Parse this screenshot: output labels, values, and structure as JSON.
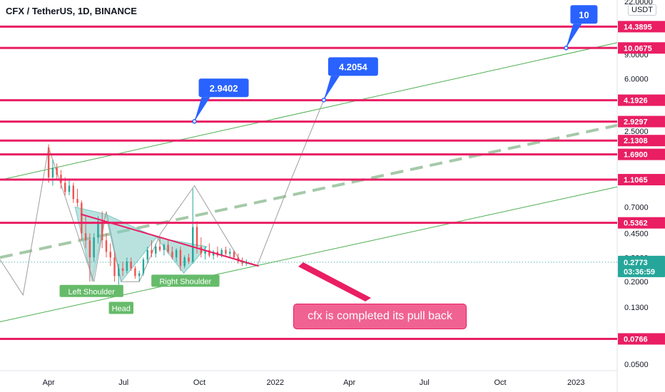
{
  "header": {
    "symbol_title": "CFX / TetherUS, 1D, BINANCE",
    "currency_button": "USDT"
  },
  "colors": {
    "hline": "#e91e63",
    "channel": "#4caf50",
    "dashed": "#a5c9a8",
    "price": "#9e9e9e",
    "callout": "#2962ff",
    "pattern_fill": "#80cbc4",
    "pattern_label": "#66bb6a",
    "candle_up": "#26a69a",
    "candle_down": "#ef5350",
    "current_price_bg": "#26a69a"
  },
  "chart_data": {
    "type": "candlestick",
    "y_scale": "log",
    "ylim": [
      0.045,
      22.5
    ],
    "x_range": [
      "2021-02-01",
      "2023-02-20"
    ],
    "x_ticks": [
      {
        "label": "Apr",
        "date": "2021-04-01"
      },
      {
        "label": "Jul",
        "date": "2021-07-01"
      },
      {
        "label": "Oct",
        "date": "2021-10-01"
      },
      {
        "label": "2022",
        "date": "2022-01-01"
      },
      {
        "label": "Apr",
        "date": "2022-04-01"
      },
      {
        "label": "Jul",
        "date": "2022-07-01"
      },
      {
        "label": "Oct",
        "date": "2022-10-01"
      },
      {
        "label": "2023",
        "date": "2023-01-01"
      }
    ],
    "y_ticks": [
      {
        "label": "22.0000",
        "value": 22.0
      },
      {
        "label": "9.0000",
        "value": 9.0
      },
      {
        "label": "6.0000",
        "value": 6.0
      },
      {
        "label": "2.5000",
        "value": 2.5
      },
      {
        "label": "0.7000",
        "value": 0.7
      },
      {
        "label": "0.4500",
        "value": 0.45
      },
      {
        "label": "0.3000",
        "value": 0.3
      },
      {
        "label": "0.2000",
        "value": 0.2
      },
      {
        "label": "0.1300",
        "value": 0.13
      },
      {
        "label": "0.0500",
        "value": 0.05
      }
    ],
    "horizontal_levels": [
      {
        "label": "14.3895",
        "value": 14.3895
      },
      {
        "label": "10.0675",
        "value": 10.0675
      },
      {
        "label": "4.1926",
        "value": 4.1926
      },
      {
        "label": "2.9297",
        "value": 2.9297
      },
      {
        "label": "2.1308",
        "value": 2.1308
      },
      {
        "label": "1.6900",
        "value": 1.69
      },
      {
        "label": "1.1065",
        "value": 1.1065
      },
      {
        "label": "0.5362",
        "value": 0.5362
      },
      {
        "label": "0.0766",
        "value": 0.0766
      }
    ],
    "current_price": {
      "label": "0.2773",
      "value": 0.2773,
      "countdown": "03:36:59"
    },
    "price_path": [
      {
        "date": "2021-02-01",
        "value": 0.29
      },
      {
        "date": "2021-03-01",
        "value": 0.16
      },
      {
        "date": "2021-04-01",
        "value": 1.9
      },
      {
        "date": "2021-05-10",
        "value": 0.38
      },
      {
        "date": "2021-05-26",
        "value": 0.2
      },
      {
        "date": "2021-06-10",
        "value": 0.65
      },
      {
        "date": "2021-06-28",
        "value": 0.2
      },
      {
        "date": "2021-07-20",
        "value": 0.2
      },
      {
        "date": "2021-08-15",
        "value": 0.45
      },
      {
        "date": "2021-09-25",
        "value": 1.0
      },
      {
        "date": "2021-11-20",
        "value": 0.28
      },
      {
        "date": "2021-12-10",
        "value": 0.26
      },
      {
        "date": "2022-01-20",
        "value": 1.1
      },
      {
        "date": "2022-03-01",
        "value": 4.2054
      }
    ],
    "candles": [
      {
        "date": "2021-04-01",
        "o": 1.9,
        "h": 2.0,
        "l": 1.05,
        "c": 1.15
      },
      {
        "date": "2021-04-06",
        "o": 1.15,
        "h": 1.55,
        "l": 1.0,
        "c": 1.35
      },
      {
        "date": "2021-04-11",
        "o": 1.35,
        "h": 1.45,
        "l": 1.1,
        "c": 1.2
      },
      {
        "date": "2021-04-16",
        "o": 1.2,
        "h": 1.3,
        "l": 0.95,
        "c": 1.05
      },
      {
        "date": "2021-04-21",
        "o": 1.05,
        "h": 1.15,
        "l": 0.85,
        "c": 0.9
      },
      {
        "date": "2021-04-26",
        "o": 0.9,
        "h": 1.1,
        "l": 0.85,
        "c": 1.0
      },
      {
        "date": "2021-05-01",
        "o": 1.0,
        "h": 1.05,
        "l": 0.75,
        "c": 0.8
      },
      {
        "date": "2021-05-06",
        "o": 0.8,
        "h": 0.95,
        "l": 0.7,
        "c": 0.75
      },
      {
        "date": "2021-05-11",
        "o": 0.75,
        "h": 0.78,
        "l": 0.4,
        "c": 0.45
      },
      {
        "date": "2021-05-16",
        "o": 0.45,
        "h": 0.6,
        "l": 0.35,
        "c": 0.4
      },
      {
        "date": "2021-05-21",
        "o": 0.4,
        "h": 0.45,
        "l": 0.2,
        "c": 0.3
      },
      {
        "date": "2021-05-26",
        "o": 0.3,
        "h": 0.45,
        "l": 0.28,
        "c": 0.42
      },
      {
        "date": "2021-05-31",
        "o": 0.42,
        "h": 0.6,
        "l": 0.38,
        "c": 0.55
      },
      {
        "date": "2021-06-05",
        "o": 0.55,
        "h": 0.65,
        "l": 0.35,
        "c": 0.4
      },
      {
        "date": "2021-06-10",
        "o": 0.4,
        "h": 0.45,
        "l": 0.3,
        "c": 0.33
      },
      {
        "date": "2021-06-15",
        "o": 0.33,
        "h": 0.38,
        "l": 0.26,
        "c": 0.3
      },
      {
        "date": "2021-06-20",
        "o": 0.3,
        "h": 0.33,
        "l": 0.2,
        "c": 0.22
      },
      {
        "date": "2021-06-25",
        "o": 0.22,
        "h": 0.27,
        "l": 0.19,
        "c": 0.25
      },
      {
        "date": "2021-06-30",
        "o": 0.25,
        "h": 0.28,
        "l": 0.22,
        "c": 0.24
      },
      {
        "date": "2021-07-05",
        "o": 0.24,
        "h": 0.3,
        "l": 0.23,
        "c": 0.28
      },
      {
        "date": "2021-07-10",
        "o": 0.28,
        "h": 0.3,
        "l": 0.24,
        "c": 0.25
      },
      {
        "date": "2021-07-15",
        "o": 0.25,
        "h": 0.26,
        "l": 0.21,
        "c": 0.22
      },
      {
        "date": "2021-07-20",
        "o": 0.22,
        "h": 0.24,
        "l": 0.2,
        "c": 0.23
      },
      {
        "date": "2021-07-25",
        "o": 0.23,
        "h": 0.3,
        "l": 0.22,
        "c": 0.29
      },
      {
        "date": "2021-07-30",
        "o": 0.29,
        "h": 0.36,
        "l": 0.27,
        "c": 0.34
      },
      {
        "date": "2021-08-04",
        "o": 0.34,
        "h": 0.4,
        "l": 0.3,
        "c": 0.32
      },
      {
        "date": "2021-08-09",
        "o": 0.32,
        "h": 0.38,
        "l": 0.3,
        "c": 0.36
      },
      {
        "date": "2021-08-14",
        "o": 0.36,
        "h": 0.42,
        "l": 0.33,
        "c": 0.34
      },
      {
        "date": "2021-08-19",
        "o": 0.34,
        "h": 0.38,
        "l": 0.31,
        "c": 0.37
      },
      {
        "date": "2021-08-24",
        "o": 0.37,
        "h": 0.4,
        "l": 0.32,
        "c": 0.33
      },
      {
        "date": "2021-08-29",
        "o": 0.33,
        "h": 0.36,
        "l": 0.29,
        "c": 0.3
      },
      {
        "date": "2021-09-03",
        "o": 0.3,
        "h": 0.35,
        "l": 0.28,
        "c": 0.34
      },
      {
        "date": "2021-09-08",
        "o": 0.34,
        "h": 0.36,
        "l": 0.24,
        "c": 0.26
      },
      {
        "date": "2021-09-13",
        "o": 0.26,
        "h": 0.31,
        "l": 0.25,
        "c": 0.3
      },
      {
        "date": "2021-09-18",
        "o": 0.3,
        "h": 0.32,
        "l": 0.27,
        "c": 0.28
      },
      {
        "date": "2021-09-23",
        "o": 0.28,
        "h": 0.95,
        "l": 0.27,
        "c": 0.5
      },
      {
        "date": "2021-09-28",
        "o": 0.5,
        "h": 0.55,
        "l": 0.32,
        "c": 0.36
      },
      {
        "date": "2021-10-03",
        "o": 0.36,
        "h": 0.42,
        "l": 0.3,
        "c": 0.32
      },
      {
        "date": "2021-10-08",
        "o": 0.32,
        "h": 0.36,
        "l": 0.29,
        "c": 0.34
      },
      {
        "date": "2021-10-13",
        "o": 0.34,
        "h": 0.38,
        "l": 0.3,
        "c": 0.31
      },
      {
        "date": "2021-10-18",
        "o": 0.31,
        "h": 0.34,
        "l": 0.29,
        "c": 0.33
      },
      {
        "date": "2021-10-23",
        "o": 0.33,
        "h": 0.36,
        "l": 0.3,
        "c": 0.31
      },
      {
        "date": "2021-10-28",
        "o": 0.31,
        "h": 0.35,
        "l": 0.3,
        "c": 0.34
      },
      {
        "date": "2021-11-02",
        "o": 0.34,
        "h": 0.36,
        "l": 0.31,
        "c": 0.32
      },
      {
        "date": "2021-11-07",
        "o": 0.32,
        "h": 0.35,
        "l": 0.3,
        "c": 0.33
      },
      {
        "date": "2021-11-12",
        "o": 0.33,
        "h": 0.34,
        "l": 0.29,
        "c": 0.3
      },
      {
        "date": "2021-11-17",
        "o": 0.3,
        "h": 0.32,
        "l": 0.27,
        "c": 0.28
      },
      {
        "date": "2021-11-22",
        "o": 0.28,
        "h": 0.3,
        "l": 0.26,
        "c": 0.27
      },
      {
        "date": "2021-11-27",
        "o": 0.27,
        "h": 0.29,
        "l": 0.26,
        "c": 0.2773
      }
    ],
    "channel_lines": [
      {
        "role": "upper",
        "from": {
          "date": "2021-02-01",
          "value": 1.1
        },
        "to": {
          "date": "2023-02-20",
          "value": 11.0
        }
      },
      {
        "role": "lower",
        "from": {
          "date": "2021-02-01",
          "value": 0.102
        },
        "to": {
          "date": "2023-02-20",
          "value": 0.98
        }
      }
    ],
    "neckline_dashed": {
      "from": {
        "date": "2021-02-01",
        "value": 0.3
      },
      "to": {
        "date": "2023-02-20",
        "value": 2.75
      }
    },
    "descending_trendline": {
      "from": {
        "date": "2021-05-10",
        "value": 0.62
      },
      "to": {
        "date": "2021-12-12",
        "value": 0.26
      }
    },
    "pattern_labels": [
      {
        "text": "Left Shoulder",
        "date": "2021-05-23",
        "value": 0.17
      },
      {
        "text": "Head",
        "date": "2021-06-28",
        "value": 0.128
      },
      {
        "text": "Right Shoulder",
        "date": "2021-09-14",
        "value": 0.202
      }
    ],
    "target_callouts": [
      {
        "text": "2.9402",
        "date": "2021-09-25",
        "value": 2.9402
      },
      {
        "text": "4.2054",
        "date": "2022-03-01",
        "value": 4.2054
      },
      {
        "text": "10",
        "date": "2022-12-20",
        "value": 10.0675
      }
    ],
    "annotation": "cfx is completed its pull back"
  }
}
